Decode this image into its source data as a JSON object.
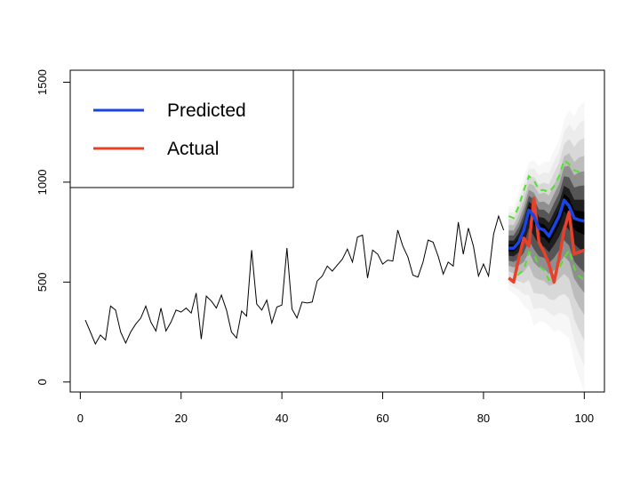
{
  "chart_data": {
    "type": "line",
    "title": "",
    "xlabel": "",
    "ylabel": "",
    "xlim": [
      -2,
      104
    ],
    "ylim": [
      -50,
      1560
    ],
    "x_ticks": [
      0,
      20,
      40,
      60,
      80,
      100
    ],
    "y_ticks": [
      0,
      500,
      1000,
      1500
    ],
    "grid": false,
    "legend": {
      "position": "top-left",
      "entries": [
        {
          "label": "Predicted",
          "color": "#1a45e6"
        },
        {
          "label": "Actual",
          "color": "#e8412b"
        }
      ]
    },
    "history": {
      "color": "#000000",
      "x": [
        1,
        2,
        3,
        4,
        5,
        6,
        7,
        8,
        9,
        10,
        11,
        12,
        13,
        14,
        15,
        16,
        17,
        18,
        19,
        20,
        21,
        22,
        23,
        24,
        25,
        26,
        27,
        28,
        29,
        30,
        31,
        32,
        33,
        34,
        35,
        36,
        37,
        38,
        39,
        40,
        41,
        42,
        43,
        44,
        45,
        46,
        47,
        48,
        49,
        50,
        51,
        52,
        53,
        54,
        55,
        56,
        57,
        58,
        59,
        60,
        61,
        62,
        63,
        64,
        65,
        66,
        67,
        68,
        69,
        70,
        71,
        72,
        73,
        74,
        75,
        76,
        77,
        78,
        79,
        80,
        81,
        82,
        83,
        84,
        85
      ],
      "y": [
        310,
        250,
        190,
        235,
        210,
        380,
        360,
        250,
        195,
        250,
        290,
        320,
        380,
        300,
        255,
        370,
        255,
        300,
        360,
        350,
        370,
        345,
        445,
        215,
        430,
        405,
        370,
        435,
        360,
        250,
        220,
        355,
        330,
        660,
        390,
        360,
        410,
        295,
        375,
        385,
        670,
        365,
        320,
        400,
        395,
        400,
        505,
        530,
        580,
        555,
        585,
        615,
        665,
        600,
        725,
        735,
        520,
        660,
        640,
        590,
        610,
        605,
        760,
        680,
        625,
        535,
        525,
        600,
        710,
        700,
        630,
        540,
        600,
        580,
        800,
        640,
        770,
        680,
        530,
        590,
        530,
        740,
        830,
        760,
        null
      ],
      "y_note": ""
    },
    "series": [
      {
        "name": "Predicted",
        "color": "#1a45e6",
        "x": [
          85,
          86,
          87,
          88,
          89,
          90,
          91,
          92,
          93,
          94,
          95,
          96,
          97,
          98,
          99,
          100
        ],
        "y": [
          670,
          670,
          700,
          760,
          860,
          830,
          770,
          760,
          730,
          780,
          830,
          910,
          880,
          820,
          810,
          805
        ]
      },
      {
        "name": "Actual",
        "color": "#e8412b",
        "x": [
          85,
          86,
          87,
          88,
          89,
          90,
          91,
          92,
          93,
          94,
          95,
          96,
          97,
          98,
          99,
          100
        ],
        "y": [
          520,
          500,
          620,
          720,
          680,
          920,
          700,
          650,
          590,
          500,
          620,
          760,
          850,
          640,
          650,
          660
        ]
      }
    ],
    "intervals": {
      "color": "#55e030",
      "x": [
        85,
        86,
        87,
        88,
        89,
        90,
        91,
        92,
        93,
        94,
        95,
        96,
        97,
        98,
        99,
        100
      ],
      "upper": [
        830,
        820,
        880,
        960,
        1030,
        1010,
        960,
        960,
        950,
        980,
        1030,
        1110,
        1090,
        1060,
        1050,
        1040
      ],
      "lower": [
        520,
        510,
        540,
        560,
        650,
        640,
        580,
        560,
        510,
        520,
        570,
        620,
        660,
        570,
        530,
        510
      ]
    },
    "fan": {
      "x": [
        85,
        86,
        87,
        88,
        89,
        90,
        91,
        92,
        93,
        94,
        95,
        96,
        97,
        98,
        99,
        100
      ],
      "center": [
        670,
        670,
        700,
        760,
        860,
        830,
        770,
        760,
        730,
        780,
        830,
        910,
        880,
        820,
        810,
        805
      ],
      "outer_lower": [
        460,
        440,
        420,
        380,
        360,
        280,
        300,
        300,
        280,
        250,
        260,
        240,
        220,
        100,
        20,
        -50
      ],
      "outer_upper": [
        880,
        880,
        950,
        1030,
        1100,
        1110,
        1080,
        1100,
        1100,
        1160,
        1210,
        1310,
        1360,
        1330,
        1380,
        1400
      ]
    }
  }
}
